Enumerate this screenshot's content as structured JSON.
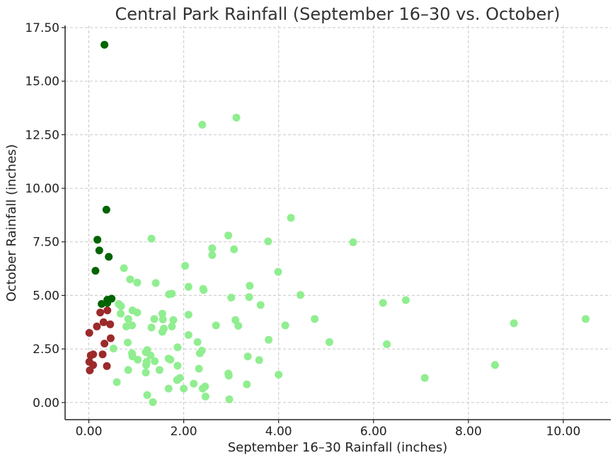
{
  "chart_data": {
    "type": "scatter",
    "title": "Central Park Rainfall (September 16–30 vs. October)",
    "xlabel": "September 16–30 Rainfall (inches)",
    "ylabel": "October Rainfall (inches)",
    "xlim": [
      -0.5,
      11.0
    ],
    "ylim": [
      -0.8,
      17.6
    ],
    "xticks": [
      0,
      2,
      4,
      6,
      8,
      10
    ],
    "xtick_labels": [
      "0.00",
      "2.00",
      "4.00",
      "6.00",
      "8.00",
      "10.00"
    ],
    "yticks": [
      0,
      2.5,
      5,
      7.5,
      10,
      12.5,
      15,
      17.5
    ],
    "ytick_labels": [
      "0.00",
      "2.50",
      "5.00",
      "7.50",
      "10.00",
      "12.50",
      "15.00",
      "17.50"
    ],
    "grid": true,
    "series": [
      {
        "color": "#006400",
        "points": [
          [
            0.33,
            16.7
          ],
          [
            0.37,
            9.0
          ],
          [
            0.18,
            7.6
          ],
          [
            0.22,
            7.1
          ],
          [
            0.42,
            6.8
          ],
          [
            0.14,
            6.15
          ],
          [
            0.48,
            4.85
          ],
          [
            0.39,
            4.8
          ],
          [
            0.39,
            4.65
          ],
          [
            0.27,
            4.6
          ]
        ]
      },
      {
        "color": "#9b2a2a",
        "points": [
          [
            0.39,
            4.3
          ],
          [
            0.24,
            4.2
          ],
          [
            0.31,
            3.75
          ],
          [
            0.45,
            3.65
          ],
          [
            0.17,
            3.55
          ],
          [
            0.01,
            3.25
          ],
          [
            0.46,
            3.0
          ],
          [
            0.33,
            2.75
          ],
          [
            0.09,
            2.25
          ],
          [
            0.04,
            2.2
          ],
          [
            0.29,
            2.25
          ],
          [
            0.01,
            1.9
          ],
          [
            0.09,
            1.75
          ],
          [
            0.38,
            1.7
          ],
          [
            0.02,
            1.5
          ]
        ]
      },
      {
        "color": "#90ee90",
        "points": [
          [
            3.11,
            13.3
          ],
          [
            2.39,
            12.97
          ],
          [
            4.26,
            8.62
          ],
          [
            5.57,
            7.48
          ],
          [
            2.94,
            7.8
          ],
          [
            1.32,
            7.65
          ],
          [
            3.78,
            7.52
          ],
          [
            2.6,
            7.2
          ],
          [
            3.06,
            7.15
          ],
          [
            2.6,
            6.88
          ],
          [
            0.74,
            6.27
          ],
          [
            2.03,
            6.38
          ],
          [
            3.99,
            6.1
          ],
          [
            0.87,
            5.75
          ],
          [
            1.02,
            5.6
          ],
          [
            1.41,
            5.58
          ],
          [
            2.1,
            5.4
          ],
          [
            2.41,
            5.3
          ],
          [
            2.42,
            5.25
          ],
          [
            3.39,
            5.45
          ],
          [
            1.69,
            5.05
          ],
          [
            1.75,
            5.08
          ],
          [
            3.0,
            4.9
          ],
          [
            3.38,
            4.92
          ],
          [
            4.46,
            5.02
          ],
          [
            3.62,
            4.55
          ],
          [
            0.63,
            4.6
          ],
          [
            0.68,
            4.5
          ],
          [
            0.67,
            4.15
          ],
          [
            0.92,
            4.3
          ],
          [
            1.02,
            4.2
          ],
          [
            1.55,
            4.15
          ],
          [
            1.38,
            3.9
          ],
          [
            1.56,
            3.88
          ],
          [
            1.78,
            3.85
          ],
          [
            2.1,
            4.1
          ],
          [
            0.83,
            3.9
          ],
          [
            3.09,
            3.85
          ],
          [
            3.15,
            3.58
          ],
          [
            2.68,
            3.6
          ],
          [
            4.76,
            3.9
          ],
          [
            4.14,
            3.6
          ],
          [
            6.2,
            4.65
          ],
          [
            6.68,
            4.78
          ],
          [
            8.96,
            3.7
          ],
          [
            10.47,
            3.9
          ],
          [
            0.79,
            3.55
          ],
          [
            0.91,
            3.6
          ],
          [
            1.32,
            3.5
          ],
          [
            1.58,
            3.45
          ],
          [
            1.75,
            3.55
          ],
          [
            1.55,
            3.3
          ],
          [
            2.1,
            3.15
          ],
          [
            3.79,
            2.93
          ],
          [
            2.29,
            2.82
          ],
          [
            0.82,
            2.8
          ],
          [
            0.52,
            2.52
          ],
          [
            1.23,
            2.45
          ],
          [
            1.2,
            2.35
          ],
          [
            2.38,
            2.42
          ],
          [
            2.34,
            2.3
          ],
          [
            0.91,
            2.3
          ],
          [
            0.92,
            2.15
          ],
          [
            1.3,
            2.2
          ],
          [
            1.87,
            2.58
          ],
          [
            5.07,
            2.82
          ],
          [
            6.28,
            2.72
          ],
          [
            3.35,
            2.15
          ],
          [
            3.59,
            1.98
          ],
          [
            1.72,
            2.0
          ],
          [
            1.03,
            2.0
          ],
          [
            1.22,
            1.9
          ],
          [
            1.39,
            1.93
          ],
          [
            1.68,
            2.05
          ],
          [
            1.21,
            1.75
          ],
          [
            1.87,
            1.72
          ],
          [
            0.83,
            1.52
          ],
          [
            1.2,
            1.4
          ],
          [
            1.49,
            1.52
          ],
          [
            2.32,
            1.58
          ],
          [
            2.94,
            1.35
          ],
          [
            2.95,
            1.25
          ],
          [
            4.0,
            1.3
          ],
          [
            7.08,
            1.15
          ],
          [
            8.56,
            1.75
          ],
          [
            1.92,
            1.15
          ],
          [
            1.86,
            1.05
          ],
          [
            0.59,
            0.95
          ],
          [
            2.21,
            0.88
          ],
          [
            2.45,
            0.75
          ],
          [
            2.4,
            0.65
          ],
          [
            1.68,
            0.65
          ],
          [
            2.0,
            0.65
          ],
          [
            3.33,
            0.85
          ],
          [
            1.23,
            0.35
          ],
          [
            2.46,
            0.28
          ],
          [
            2.96,
            0.15
          ],
          [
            1.35,
            0.02
          ]
        ]
      }
    ]
  }
}
